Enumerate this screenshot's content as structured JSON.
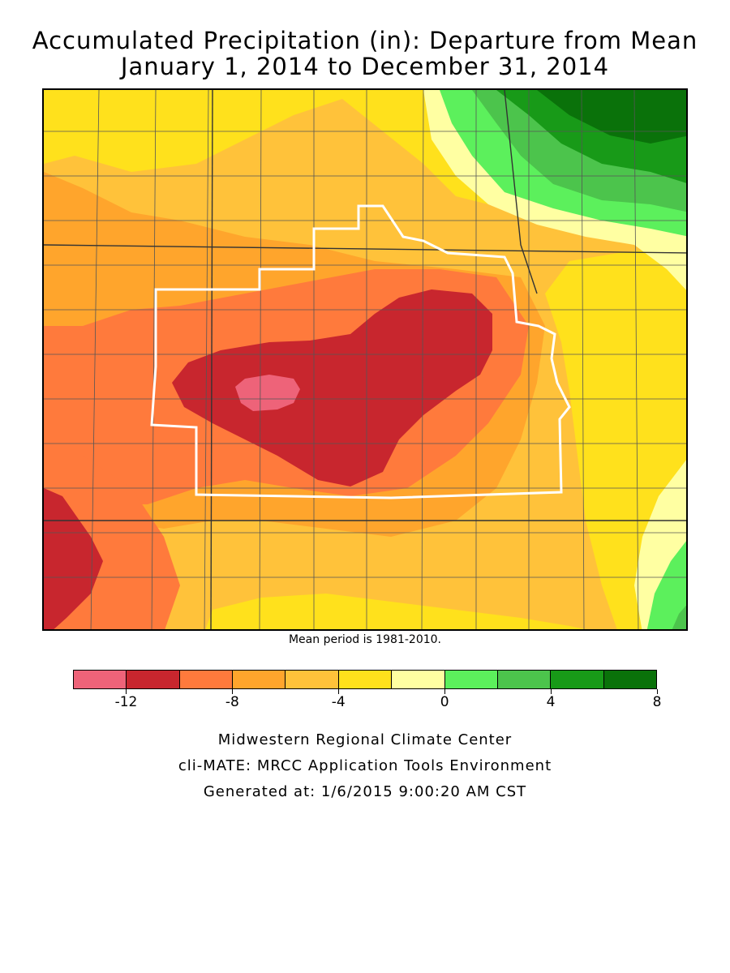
{
  "title": {
    "line1": "Accumulated Precipitation (in): Departure from Mean",
    "line2": "January 1, 2014 to December 31, 2014"
  },
  "map": {
    "region_label": "",
    "colors": {
      "dark_red": "#c8262e",
      "pink": "#ee6379",
      "red_orange": "#ff7a3c",
      "orange": "#ffa52c",
      "light_orange": "#ffc23a",
      "yellow": "#ffe11c",
      "pale_yellow": "#ffffa2",
      "light_green": "#5cf05c",
      "mid_green": "#4cc44c",
      "green": "#189a18",
      "dark_green": "#0a720a",
      "highlight_boundary": "#ffffff",
      "county_lines": "#555555"
    }
  },
  "mean_note": "Mean period is 1981-2010.",
  "legend": {
    "bins": [
      {
        "color": "#ee6379"
      },
      {
        "color": "#c8262e"
      },
      {
        "color": "#ff7a3c"
      },
      {
        "color": "#ffa52c"
      },
      {
        "color": "#ffc23a"
      },
      {
        "color": "#ffe11c"
      },
      {
        "color": "#ffffa2"
      },
      {
        "color": "#5cf05c"
      },
      {
        "color": "#4cc44c"
      },
      {
        "color": "#189a18"
      },
      {
        "color": "#0a720a"
      }
    ],
    "ticks": [
      {
        "value": -12,
        "label": "-12"
      },
      {
        "value": -8,
        "label": "-8"
      },
      {
        "value": -4,
        "label": "-4"
      },
      {
        "value": 0,
        "label": "0"
      },
      {
        "value": 4,
        "label": "4"
      },
      {
        "value": 8,
        "label": "8"
      }
    ],
    "min": -14,
    "max": 8
  },
  "credits": {
    "line1": "Midwestern Regional Climate Center",
    "line2": "cli-MATE: MRCC Application Tools Environment",
    "line3": "Generated at: 1/6/2015 9:00:20 AM CST"
  }
}
